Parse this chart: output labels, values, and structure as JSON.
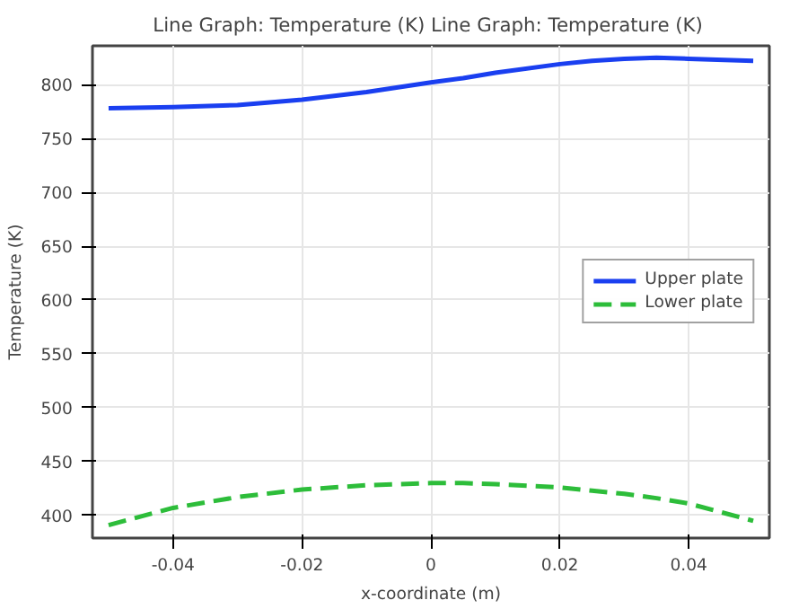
{
  "chart_data": {
    "type": "line",
    "title": "Line Graph: Temperature (K)  Line Graph: Temperature (K)",
    "xlabel": "x-coordinate (m)",
    "ylabel": "Temperature (K)",
    "x": [
      -0.05,
      -0.04,
      -0.03,
      -0.02,
      -0.01,
      0,
      0.005,
      0.01,
      0.02,
      0.025,
      0.03,
      0.035,
      0.04,
      0.05
    ],
    "series": [
      {
        "name": "Upper plate",
        "color": "#1a3ff0",
        "line_style": "solid",
        "values": [
          778,
          779,
          781,
          786,
          793,
          802,
          806,
          811,
          819,
          822,
          824,
          825,
          824,
          822
        ]
      },
      {
        "name": "Lower plate",
        "color": "#2dbd3a",
        "line_style": "dashed",
        "values": [
          391,
          407,
          417,
          424,
          428,
          430,
          430,
          429,
          426,
          423,
          420,
          416,
          411,
          395
        ]
      }
    ],
    "xlim": [
      -0.0525,
      0.0525
    ],
    "ylim": [
      379,
      836
    ],
    "xticks": [
      -0.04,
      -0.02,
      0,
      0.02,
      0.04
    ],
    "yticks": [
      400,
      450,
      500,
      550,
      600,
      650,
      700,
      750,
      800
    ],
    "grid": true,
    "legend": "right"
  }
}
